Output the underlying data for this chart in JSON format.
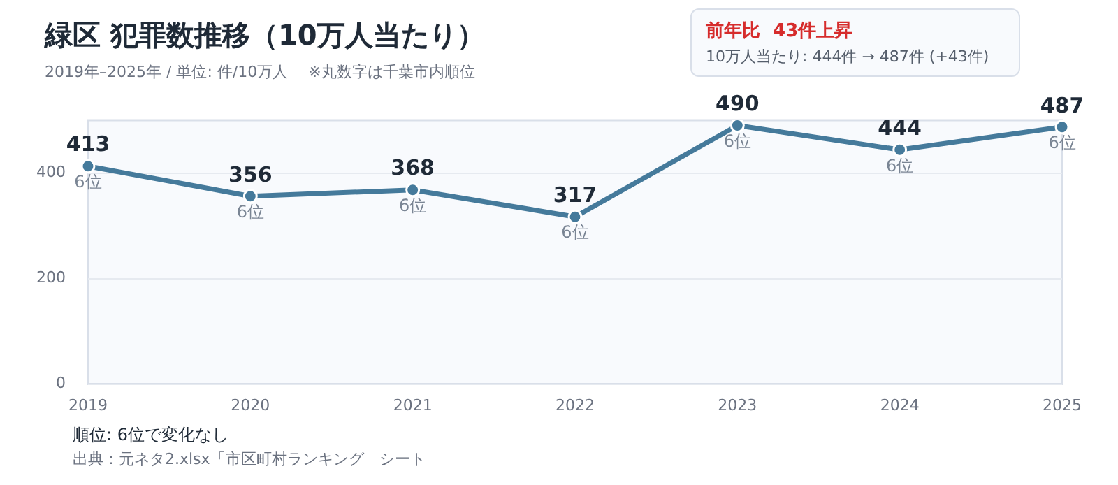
{
  "chart_data": {
    "type": "line",
    "title": "緑区  犯罪数推移（10万人当たり）",
    "subtitle": "2019年–2025年 / 単位: 件/10万人　 ※丸数字は千葉市内順位",
    "categories": [
      "2019",
      "2020",
      "2021",
      "2022",
      "2023",
      "2024",
      "2025"
    ],
    "series": [
      {
        "color": "#457a9b",
        "values": [
          413,
          356,
          368,
          317,
          490,
          444,
          487
        ]
      }
    ],
    "ylim": [
      0,
      500
    ],
    "yticks": [
      0,
      200,
      400
    ],
    "grid": "y",
    "legend": false,
    "marker": "circle",
    "line_style": "solid",
    "data_labels": true,
    "annotations": [
      "前年比  43件上昇",
      "10万人当たり: 444件 → 487件 (+43件)",
      {
        "text": "6位",
        "x": "2019",
        "y": 413
      },
      {
        "text": "6位",
        "x": "2020",
        "y": 356
      },
      {
        "text": "6位",
        "x": "2021",
        "y": 368
      },
      {
        "text": "6位",
        "x": "2022",
        "y": 317
      },
      {
        "text": "6位",
        "x": "2023",
        "y": 490
      },
      {
        "text": "6位",
        "x": "2024",
        "y": 444
      },
      {
        "text": "6位",
        "x": "2025",
        "y": 487
      },
      "順位: 6位で変化なし",
      "出典：元ネタ2.xlsx「市区町村ランキング」シート"
    ]
  }
}
